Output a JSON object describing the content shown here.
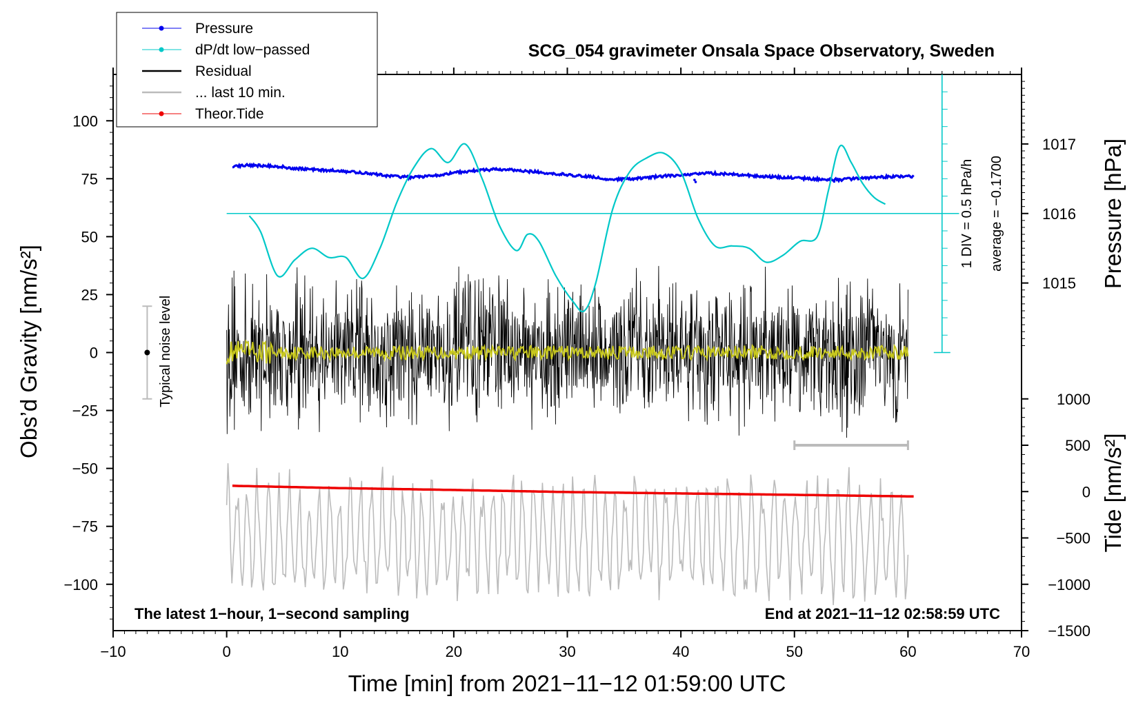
{
  "chart_data": {
    "type": "line",
    "title": "SCG_054 gravimeter Onsala Space Observatory, Sweden",
    "xlabel": "Time [min] from 2021−11−12 01:59:00 UTC",
    "ylabel_left": "Obs’d Gravity [nm/s²]",
    "ylabel_right_pressure": "Pressure [hPa]",
    "ylabel_right_tide": "Tide [nm/s²]",
    "xlim": [
      -10,
      70
    ],
    "ylim_gravity": [
      -120,
      120
    ],
    "xticks": [
      -10,
      0,
      10,
      20,
      30,
      40,
      50,
      60,
      70
    ],
    "xtick_labels": [
      "−10",
      "0",
      "10",
      "20",
      "30",
      "40",
      "50",
      "60",
      "70"
    ],
    "yticks_gravity": [
      100,
      75,
      50,
      25,
      0,
      -25,
      -50,
      -75,
      -100
    ],
    "ytick_labels_gravity": [
      "100",
      "75",
      "50",
      "25",
      "0",
      "−25",
      "−50",
      "−75",
      "−100"
    ],
    "pressure_axis": {
      "ticks": [
        1017,
        1016,
        1015
      ],
      "tick_labels": [
        "1017",
        "1016",
        "1015"
      ],
      "gravity_equiv": [
        [
          1017,
          90
        ],
        [
          1016,
          60
        ],
        [
          1015,
          30
        ]
      ]
    },
    "tide_axis": {
      "ticks": [
        1000,
        500,
        0,
        -500,
        -1000,
        -1500
      ],
      "tick_labels": [
        "1000",
        "500",
        "0",
        "−500",
        "−1000",
        "−1500"
      ],
      "gravity_equiv": [
        [
          1000,
          -20
        ],
        [
          -1500,
          -120
        ]
      ]
    },
    "legend": [
      {
        "label": "Pressure",
        "color": "#0000ee",
        "marker": true
      },
      {
        "label": "dP/dt low−passed",
        "color": "#00c8c8",
        "marker": true
      },
      {
        "label": "Residual",
        "color": "#000000",
        "marker": false
      },
      {
        "label": "... last 10 min.",
        "color": "#bbbbbb",
        "marker": false
      },
      {
        "label": "Theor.Tide",
        "color": "#ee0000",
        "marker": true
      }
    ],
    "annotations": {
      "bottom_left": "The latest 1−hour, 1−second sampling",
      "bottom_right": "End at 2021−11−12 02:58:59 UTC",
      "noise_label": "Typical noise level",
      "dpdt_scale": "1 DIV = 0.5 hPa/h",
      "dpdt_average": "average = −0.1700"
    },
    "noise_bar": {
      "x": -7,
      "center": 0,
      "half_range": 20
    },
    "last10_bar": {
      "x_start": 50,
      "x_end": 60,
      "y": -40
    },
    "dpdt_scale_axis": {
      "x": 63,
      "y_from": 0,
      "y_to": 120,
      "zero_line_y": 60
    },
    "series": [
      {
        "name": "Pressure",
        "color": "#0000ee",
        "unit": "gravity-axis equivalent",
        "x": [
          0.5,
          2,
          4,
          6,
          8,
          10,
          12,
          14,
          16,
          18,
          20,
          22,
          24,
          26,
          28,
          30,
          32,
          34,
          36,
          38,
          40,
          42,
          44,
          46,
          48,
          50,
          52,
          54,
          56,
          58,
          60.5
        ],
        "values": [
          80.5,
          80.8,
          80.6,
          79.5,
          78.9,
          78.3,
          77.5,
          76.4,
          75.6,
          76.2,
          77.5,
          78.6,
          79.1,
          78.4,
          77.6,
          76.8,
          75.8,
          74.7,
          75.0,
          76.0,
          76.5,
          77.5,
          77.0,
          76.4,
          75.8,
          75.3,
          74.8,
          74.6,
          75.2,
          75.8,
          76.0
        ]
      },
      {
        "name": "dP/dt low−passed",
        "color": "#00c8c8",
        "unit": "gravity-axis equivalent",
        "x": [
          2,
          3,
          4.5,
          6,
          7.5,
          9,
          10.5,
          12,
          13.5,
          15,
          16.5,
          18,
          19.5,
          21,
          22.5,
          24,
          25.5,
          26.5,
          27.5,
          29,
          30.5,
          31.5,
          32.5,
          34,
          35.5,
          37,
          38.5,
          40,
          41.5,
          43,
          44.5,
          46,
          47.5,
          49,
          50.5,
          52,
          53,
          54,
          55,
          56,
          57,
          58
        ],
        "values": [
          59,
          52,
          33,
          40,
          45,
          41,
          41,
          32,
          45,
          65,
          80,
          88,
          82,
          90,
          75,
          55,
          44,
          51,
          48,
          33,
          22,
          18,
          30,
          62,
          78,
          84,
          86,
          78,
          58,
          46,
          46,
          45,
          39,
          42,
          48,
          50,
          70,
          89,
          82,
          73,
          67,
          64
        ]
      },
      {
        "name": "Residual",
        "color": "#000000",
        "unit": "nm/s²",
        "x_range": [
          0,
          60
        ],
        "envelope": 40
      },
      {
        "name": "Residual smoothed",
        "color": "#c8c81e",
        "unit": "nm/s²",
        "x_range": [
          0,
          60
        ],
        "envelope": 3
      },
      {
        "name": "... last 10 min.",
        "color": "#bbbbbb",
        "unit": "gravity-axis equivalent",
        "x_range": [
          0,
          60
        ],
        "center": -80,
        "envelope": 30
      },
      {
        "name": "Theor.Tide",
        "color": "#ee0000",
        "unit": "gravity-axis equivalent",
        "x": [
          0.5,
          10,
          20,
          30,
          40,
          50,
          60.5
        ],
        "values": [
          -57.5,
          -58.5,
          -59.3,
          -60.2,
          -60.8,
          -61.4,
          -62.1
        ]
      }
    ]
  }
}
